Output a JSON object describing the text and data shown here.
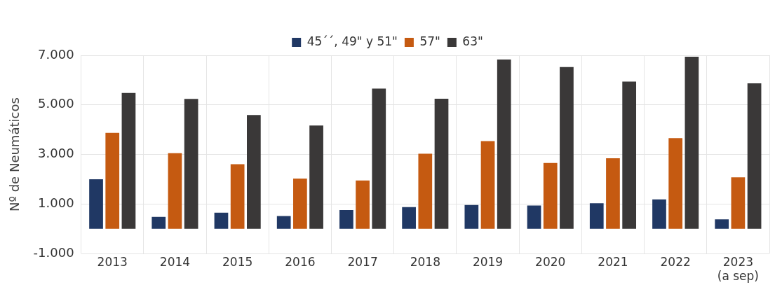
{
  "chart_data": {
    "type": "bar",
    "ylabel": "Nº de Neumáticos",
    "categories": [
      "2013",
      "2014",
      "2015",
      "2016",
      "2017",
      "2018",
      "2019",
      "2020",
      "2021",
      "2022",
      "2023\n(a sep)"
    ],
    "series": [
      {
        "name": "45´´, 49\" y 51\"",
        "color": "#203864",
        "values": [
          2000,
          480,
          650,
          520,
          760,
          880,
          960,
          940,
          1030,
          1190,
          380
        ]
      },
      {
        "name": "57\"",
        "color": "#c55a11",
        "values": [
          3870,
          3050,
          2610,
          2030,
          1950,
          3030,
          3540,
          2660,
          2850,
          3660,
          2080
        ]
      },
      {
        "name": "63\"",
        "color": "#3a3838",
        "values": [
          5480,
          5240,
          4590,
          4170,
          5660,
          5250,
          6830,
          6530,
          5940,
          6940,
          5870
        ]
      }
    ],
    "ylim": [
      -1000,
      7000
    ],
    "yticks": [
      {
        "value": -1000,
        "label": "-1.000"
      },
      {
        "value": 1000,
        "label": "1.000"
      },
      {
        "value": 3000,
        "label": "3.000"
      },
      {
        "value": 5000,
        "label": "5.000"
      },
      {
        "value": 7000,
        "label": "7.000"
      }
    ],
    "grid": true,
    "legend": "top"
  }
}
